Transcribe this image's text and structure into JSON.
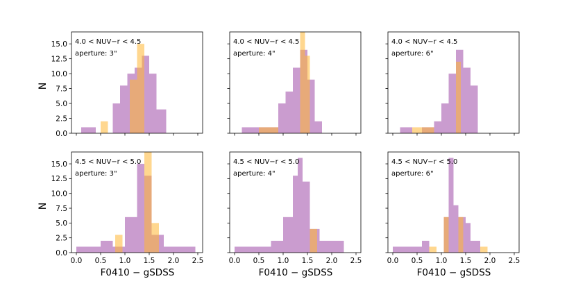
{
  "figure": {
    "ylabel": "N",
    "xlabel": "F0410 − gSDSS",
    "colors": {
      "purple": "#9e4aa8",
      "orange": "#ffb733"
    }
  },
  "chart_data": [
    {
      "type": "histogram",
      "range_label": "4.0 < NUV−r < 4.5",
      "aperture_label": "aperture: 3\"",
      "xlim": [
        -0.1,
        2.6
      ],
      "ylim": [
        0,
        17
      ],
      "xticks": [
        "0.0",
        "0.5",
        "1.0",
        "1.5",
        "2.0",
        "2.5"
      ],
      "yticks": [
        "0.0",
        "2.5",
        "5.0",
        "7.5",
        "10.0",
        "12.5",
        "15.0"
      ],
      "series": [
        {
          "name": "purple",
          "edges": [
            0.1,
            0.4,
            0.75,
            0.9,
            1.05,
            1.2,
            1.35,
            1.5,
            1.65,
            1.85
          ],
          "counts": [
            1,
            0,
            5,
            8,
            10,
            11,
            13,
            10,
            4
          ]
        },
        {
          "name": "orange",
          "edges": [
            0.5,
            0.65,
            0.8,
            0.95,
            1.1,
            1.25,
            1.4,
            1.55
          ],
          "counts": [
            2,
            0,
            0,
            0,
            9,
            15,
            0
          ]
        }
      ]
    },
    {
      "type": "histogram",
      "range_label": "4.0 < NUV−r < 4.5",
      "aperture_label": "aperture: 4\"",
      "xlim": [
        -0.1,
        2.6
      ],
      "ylim": [
        0,
        17
      ],
      "xticks": [
        "0.0",
        "0.5",
        "1.0",
        "1.5",
        "2.0",
        "2.5"
      ],
      "yticks": [
        "0.0",
        "2.5",
        "5.0",
        "7.5",
        "10.0",
        "12.5",
        "15.0"
      ],
      "series": [
        {
          "name": "purple",
          "edges": [
            0.15,
            0.9,
            1.05,
            1.2,
            1.35,
            1.5,
            1.65,
            1.8
          ],
          "counts": [
            1,
            5,
            7,
            11,
            14,
            9,
            2
          ]
        },
        {
          "name": "orange",
          "edges": [
            0.5,
            0.9,
            1.05,
            1.2,
            1.35,
            1.45,
            1.55
          ],
          "counts": [
            1,
            0,
            0,
            0,
            17,
            13
          ]
        }
      ]
    },
    {
      "type": "histogram",
      "range_label": "4.0 < NUV−r < 4.5",
      "aperture_label": "aperture: 6\"",
      "xlim": [
        -0.1,
        2.6
      ],
      "ylim": [
        0,
        17
      ],
      "xticks": [
        "0.0",
        "0.5",
        "1.0",
        "1.5",
        "2.0",
        "2.5"
      ],
      "yticks": [
        "0.0",
        "2.5",
        "5.0",
        "7.5",
        "10.0",
        "12.5",
        "15.0"
      ],
      "series": [
        {
          "name": "purple",
          "edges": [
            0.15,
            0.4,
            0.6,
            0.85,
            1.0,
            1.15,
            1.3,
            1.45,
            1.6,
            1.75
          ],
          "counts": [
            1,
            0,
            1,
            2,
            5,
            10,
            14,
            11,
            8
          ]
        },
        {
          "name": "orange",
          "edges": [
            0.4,
            0.85,
            1.0,
            1.15,
            1.3,
            1.4,
            1.5,
            1.6,
            1.75
          ],
          "counts": [
            1,
            0,
            0,
            0,
            12,
            0,
            0,
            0
          ]
        }
      ]
    },
    {
      "type": "histogram",
      "range_label": "4.5 < NUV−r < 5.0",
      "aperture_label": "aperture: 3\"",
      "xlim": [
        -0.1,
        2.6
      ],
      "ylim": [
        0,
        17
      ],
      "xticks": [
        "0.0",
        "0.5",
        "1.0",
        "1.5",
        "2.0",
        "2.5"
      ],
      "yticks": [
        "0.0",
        "2.5",
        "5.0",
        "7.5",
        "10.0",
        "12.5",
        "15.0"
      ],
      "series": [
        {
          "name": "purple",
          "edges": [
            0.0,
            0.5,
            0.75,
            1.0,
            1.25,
            1.4,
            1.55,
            1.8,
            2.0,
            2.45
          ],
          "counts": [
            1,
            2,
            1,
            6,
            15,
            13,
            3,
            1,
            1
          ]
        },
        {
          "name": "orange",
          "edges": [
            0.8,
            0.95,
            1.25,
            1.4,
            1.55,
            1.7
          ],
          "counts": [
            3,
            0,
            0,
            17,
            5
          ]
        }
      ]
    },
    {
      "type": "histogram",
      "range_label": "4.5 < NUV−r < 5.0",
      "aperture_label": "aperture: 4\"",
      "xlim": [
        -0.1,
        2.6
      ],
      "ylim": [
        0,
        17
      ],
      "xticks": [
        "0.0",
        "0.5",
        "1.0",
        "1.5",
        "2.0",
        "2.5"
      ],
      "yticks": [
        "0.0",
        "2.5",
        "5.0",
        "7.5",
        "10.0",
        "12.5",
        "15.0"
      ],
      "series": [
        {
          "name": "purple",
          "edges": [
            0.0,
            0.75,
            1.0,
            1.2,
            1.3,
            1.4,
            1.55,
            1.75,
            2.0,
            2.25
          ],
          "counts": [
            1,
            2,
            6,
            13,
            16,
            12,
            4,
            2,
            2
          ]
        },
        {
          "name": "orange",
          "edges": [
            1.55,
            1.7
          ],
          "counts": [
            4
          ]
        }
      ]
    },
    {
      "type": "histogram",
      "range_label": "4.5 < NUV−r < 5.0",
      "aperture_label": "aperture: 6\"",
      "xlim": [
        -0.1,
        2.6
      ],
      "ylim": [
        0,
        17
      ],
      "xticks": [
        "0.0",
        "0.5",
        "1.0",
        "1.5",
        "2.0",
        "2.5"
      ],
      "yticks": [
        "0.0",
        "2.5",
        "5.0",
        "7.5",
        "10.0",
        "12.5",
        "15.0"
      ],
      "series": [
        {
          "name": "purple",
          "edges": [
            0.0,
            0.6,
            0.75,
            0.9,
            1.05,
            1.15,
            1.25,
            1.35,
            1.5,
            1.6,
            1.8,
            1.9
          ],
          "counts": [
            1,
            2,
            0,
            0,
            6,
            16,
            8,
            6,
            5,
            2,
            0
          ]
        },
        {
          "name": "orange",
          "edges": [
            0.75,
            0.9,
            1.05,
            1.15,
            1.25,
            1.35,
            1.45,
            1.6,
            1.8,
            1.95
          ],
          "counts": [
            1,
            0,
            6,
            0,
            0,
            6,
            0,
            0,
            1
          ]
        }
      ]
    }
  ]
}
